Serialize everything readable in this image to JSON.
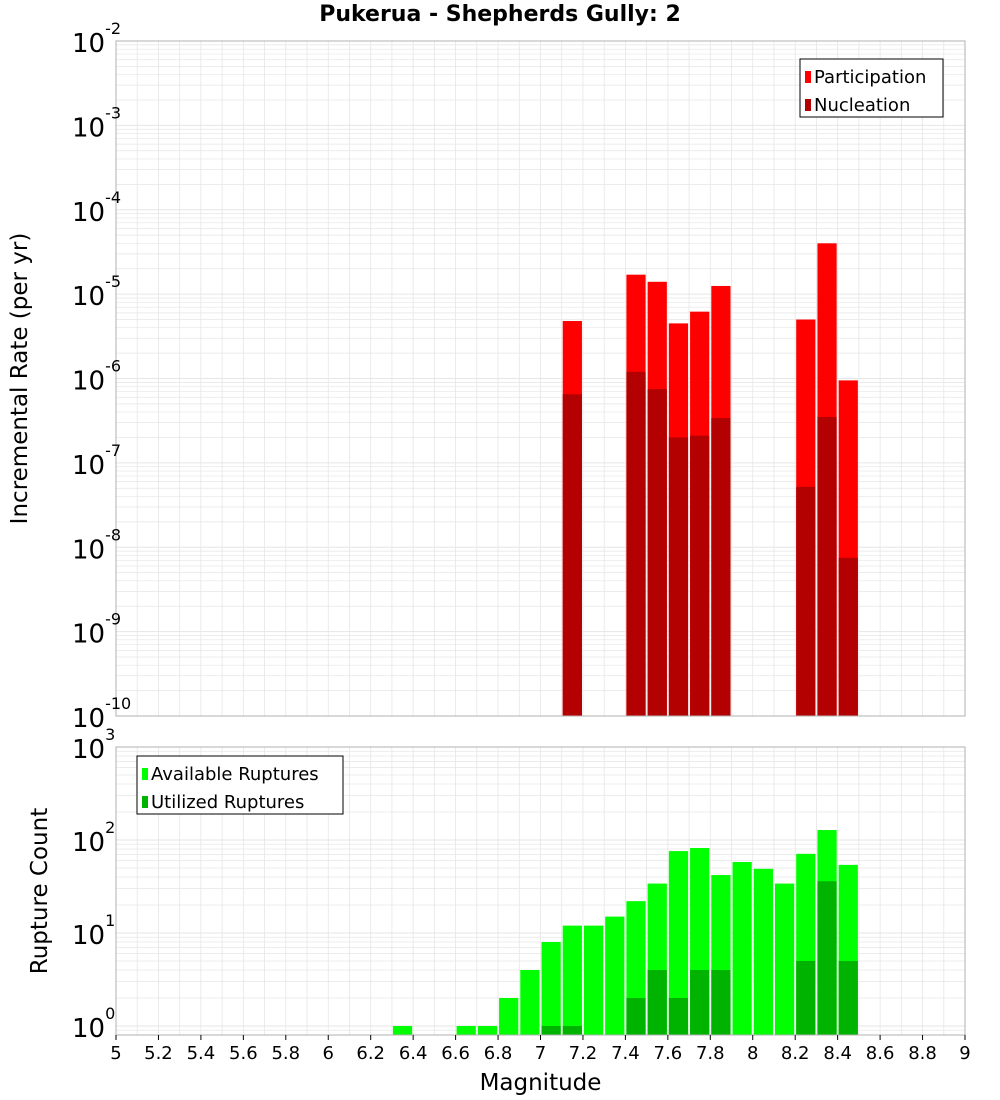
{
  "title": "Pukerua - Shepherds Gully: 2",
  "colors": {
    "participation": "#ff0000",
    "nucleation": "#b30000",
    "available": "#00ff00",
    "utilized": "#00b300",
    "grid": "#e6e6e6",
    "frame": "#b0b0b0"
  },
  "chart_data": [
    {
      "type": "bar",
      "ylabel": "Incremental Rate (per yr)",
      "xlabel": "",
      "yscale": "log",
      "ylim": [
        1e-10,
        0.01
      ],
      "xlim": [
        5,
        9
      ],
      "y_tick_exponents": [
        -10,
        -9,
        -8,
        -7,
        -6,
        -5,
        -4,
        -3,
        -2
      ],
      "grid": true,
      "legend_position": "top-right",
      "series": [
        {
          "name": "Participation",
          "x": [
            7.15,
            7.45,
            7.55,
            7.65,
            7.75,
            7.85,
            8.25,
            8.35,
            8.45
          ],
          "values": [
            4.8e-06,
            1.7e-05,
            1.4e-05,
            4.5e-06,
            6.2e-06,
            1.25e-05,
            5e-06,
            4e-05,
            9.5e-07
          ]
        },
        {
          "name": "Nucleation",
          "x": [
            7.15,
            7.45,
            7.55,
            7.65,
            7.75,
            7.85,
            8.25,
            8.35,
            8.45
          ],
          "values": [
            6.5e-07,
            1.2e-06,
            7.5e-07,
            2e-07,
            2.1e-07,
            3.4e-07,
            5.2e-08,
            3.5e-07,
            7.5e-09
          ]
        }
      ]
    },
    {
      "type": "bar",
      "ylabel": "Rupture Count",
      "xlabel": "Magnitude",
      "yscale": "log",
      "ylim": [
        0.8,
        1000
      ],
      "xlim": [
        5,
        9
      ],
      "y_tick_exponents": [
        0,
        1,
        2,
        3
      ],
      "x_ticks": [
        "5",
        "5.2",
        "5.4",
        "5.6",
        "5.8",
        "6",
        "6.2",
        "6.4",
        "6.6",
        "6.8",
        "7",
        "7.2",
        "7.4",
        "7.6",
        "7.8",
        "8",
        "8.2",
        "8.4",
        "8.6",
        "8.8",
        "9"
      ],
      "grid": true,
      "legend_position": "top-left",
      "series": [
        {
          "name": "Available Ruptures",
          "x": [
            6.35,
            6.65,
            6.75,
            6.85,
            6.95,
            7.05,
            7.15,
            7.25,
            7.35,
            7.45,
            7.55,
            7.65,
            7.75,
            7.85,
            7.95,
            8.05,
            8.15,
            8.25,
            8.35,
            8.45
          ],
          "values": [
            1,
            1,
            1,
            2,
            4,
            8,
            12,
            12,
            15,
            22,
            34,
            76,
            82,
            42,
            58,
            49,
            34,
            71,
            128,
            54
          ]
        },
        {
          "name": "Utilized Ruptures",
          "x": [
            7.05,
            7.15,
            7.45,
            7.55,
            7.65,
            7.75,
            7.85,
            8.25,
            8.35,
            8.45
          ],
          "values": [
            1,
            1,
            2,
            4,
            2,
            4,
            4,
            5,
            36,
            5
          ]
        }
      ]
    }
  ]
}
